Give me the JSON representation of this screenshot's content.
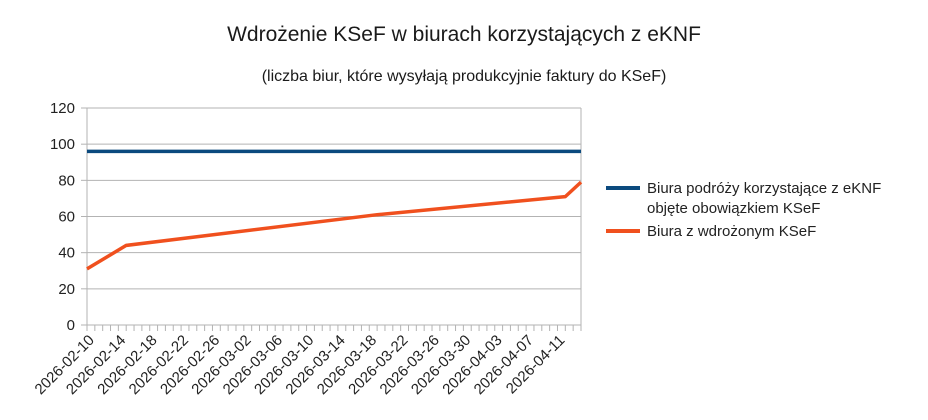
{
  "chart_data": {
    "type": "line",
    "title": "Wdrożenie KSeF w biurach korzystających z eKNF",
    "subtitle": "(liczba biur, które wysyłają produkcyjnie faktury do KSeF)",
    "xlabel": "",
    "ylabel": "",
    "ylim": [
      0,
      120
    ],
    "yticks": [
      0,
      20,
      40,
      60,
      80,
      100,
      120
    ],
    "xlim": [
      "2026-02-10",
      "2026-04-14"
    ],
    "xticks": [
      "2026-02-10",
      "2026-02-14",
      "2026-02-18",
      "2026-02-22",
      "2026-02-26",
      "2026-03-02",
      "2026-03-06",
      "2026-03-10",
      "2026-03-14",
      "2026-03-18",
      "2026-03-22",
      "2026-03-26",
      "2026-03-30",
      "2026-04-03",
      "2026-04-07",
      "2026-04-11"
    ],
    "grid": "horizontal",
    "legend_position": "right",
    "series": [
      {
        "name": "Biura podróży korzystające z eKNF objęte obowiązkiem KSeF",
        "color": "#0b4a7e",
        "x": [
          "2026-02-10",
          "2026-04-14"
        ],
        "values": [
          96,
          96
        ]
      },
      {
        "name": "Biura z wdrożonym KSeF",
        "color": "#f0501e",
        "x": [
          "2026-02-10",
          "2026-02-15",
          "2026-03-19",
          "2026-04-12",
          "2026-04-14"
        ],
        "values": [
          31,
          44,
          61,
          71,
          79
        ]
      }
    ]
  }
}
